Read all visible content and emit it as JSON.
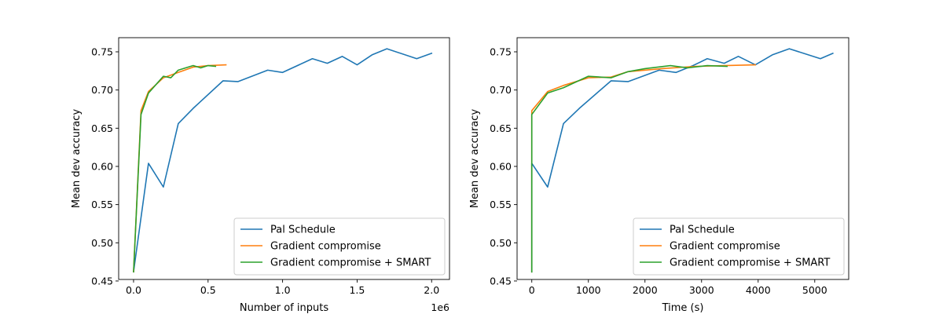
{
  "chart_data": [
    {
      "type": "line",
      "xlabel": "Number of inputs",
      "ylabel": "Mean dev accuracy",
      "x_offset_label": "1e6",
      "xlim": [
        -0.1,
        2.12
      ],
      "ylim": [
        0.452,
        0.7685
      ],
      "xticks": [
        0.0,
        0.5,
        1.0,
        1.5,
        2.0
      ],
      "xtick_labels": [
        "0.0",
        "0.5",
        "1.0",
        "1.5",
        "2.0"
      ],
      "yticks": [
        0.45,
        0.5,
        0.55,
        0.6,
        0.65,
        0.7,
        0.75
      ],
      "ytick_labels": [
        "0.45",
        "0.50",
        "0.55",
        "0.60",
        "0.65",
        "0.70",
        "0.75"
      ],
      "grid": false,
      "legend_position": "lower-right",
      "series": [
        {
          "name": "Pal Schedule",
          "color": "#1f77b4",
          "x": [
            0.0,
            0.1,
            0.2,
            0.3,
            0.4,
            0.6,
            0.7,
            0.9,
            1.0,
            1.2,
            1.3,
            1.4,
            1.5,
            1.6,
            1.7,
            1.9,
            2.0
          ],
          "y": [
            0.462,
            0.604,
            0.573,
            0.656,
            0.676,
            0.712,
            0.711,
            0.726,
            0.723,
            0.741,
            0.735,
            0.744,
            0.733,
            0.746,
            0.754,
            0.741,
            0.748
          ]
        },
        {
          "name": "Gradient compromise",
          "color": "#ff7f0e",
          "x": [
            0.0,
            0.05,
            0.1,
            0.2,
            0.3,
            0.4,
            0.5,
            0.62
          ],
          "y": [
            0.462,
            0.673,
            0.698,
            0.716,
            0.723,
            0.73,
            0.732,
            0.733
          ]
        },
        {
          "name": "Gradient compromise + SMART",
          "color": "#2ca02c",
          "x": [
            0.0,
            0.05,
            0.1,
            0.2,
            0.25,
            0.3,
            0.4,
            0.45,
            0.5,
            0.55
          ],
          "y": [
            0.462,
            0.668,
            0.696,
            0.718,
            0.716,
            0.726,
            0.732,
            0.729,
            0.732,
            0.731
          ]
        }
      ]
    },
    {
      "type": "line",
      "xlabel": "Time (s)",
      "ylabel": "Mean dev accuracy",
      "xlim": [
        -260,
        5600
      ],
      "ylim": [
        0.452,
        0.7685
      ],
      "xticks": [
        0,
        1000,
        2000,
        3000,
        4000,
        5000
      ],
      "xtick_labels": [
        "0",
        "1000",
        "2000",
        "3000",
        "4000",
        "5000"
      ],
      "yticks": [
        0.45,
        0.5,
        0.55,
        0.6,
        0.65,
        0.7,
        0.75
      ],
      "ytick_labels": [
        "0.45",
        "0.50",
        "0.55",
        "0.60",
        "0.65",
        "0.70",
        "0.75"
      ],
      "grid": false,
      "legend_position": "lower-right",
      "series": [
        {
          "name": "Pal Schedule",
          "color": "#1f77b4",
          "x": [
            0,
            0,
            280,
            560,
            840,
            1400,
            1700,
            2250,
            2550,
            2850,
            3100,
            3400,
            3650,
            3950,
            4250,
            4550,
            5100,
            5320
          ],
          "y": [
            0.462,
            0.604,
            0.573,
            0.656,
            0.676,
            0.712,
            0.711,
            0.726,
            0.723,
            0.732,
            0.741,
            0.735,
            0.744,
            0.733,
            0.746,
            0.754,
            0.741,
            0.748
          ]
        },
        {
          "name": "Gradient compromise",
          "color": "#ff7f0e",
          "x": [
            0,
            0,
            280,
            560,
            1000,
            1400,
            1700,
            2300,
            2900,
            3400,
            3950
          ],
          "y": [
            0.462,
            0.673,
            0.698,
            0.706,
            0.716,
            0.717,
            0.724,
            0.728,
            0.731,
            0.732,
            0.733
          ]
        },
        {
          "name": "Gradient compromise + SMART",
          "color": "#2ca02c",
          "x": [
            0,
            0,
            280,
            560,
            1000,
            1400,
            1700,
            2000,
            2450,
            2750,
            3100,
            3450
          ],
          "y": [
            0.462,
            0.668,
            0.696,
            0.703,
            0.718,
            0.716,
            0.724,
            0.728,
            0.732,
            0.729,
            0.732,
            0.731
          ]
        }
      ]
    }
  ]
}
